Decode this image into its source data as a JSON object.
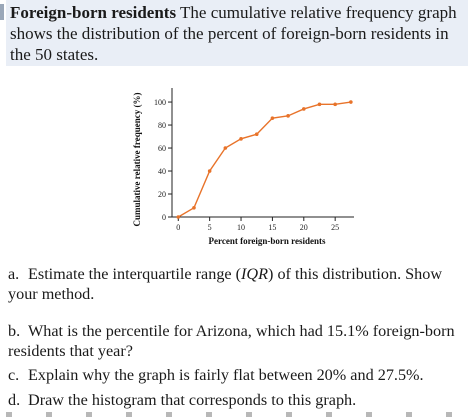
{
  "intro": {
    "lead": "Foreign-born residents",
    "text": " The cumulative relative frequency graph shows the distribution of the percent of foreign-born residents in the 50 states."
  },
  "chart_data": {
    "type": "line",
    "title": "",
    "xlabel": "Percent foreign-born residents",
    "ylabel": "Cumulative relative frequency (%)",
    "xlim": [
      -1,
      28
    ],
    "ylim": [
      0,
      107
    ],
    "xticks": [
      0,
      5,
      10,
      15,
      20,
      25
    ],
    "yticks": [
      0,
      20,
      40,
      60,
      80,
      100
    ],
    "grid": false,
    "series": [
      {
        "color": "#e8732a",
        "x": [
          0,
          2.5,
          5,
          7.5,
          10,
          12.5,
          15,
          17.5,
          20,
          22.5,
          25,
          27.5
        ],
        "y": [
          0,
          8,
          40,
          60,
          68,
          72,
          86,
          88,
          94,
          98,
          98,
          100
        ]
      }
    ]
  },
  "questions": [
    {
      "letter": "a.",
      "text_before": "Estimate the interquartile range (",
      "emph": "IQR",
      "text_after": ") of this distribution. Show your method."
    },
    {
      "letter": "b.",
      "text": "What is the percentile for Arizona, which had 15.1% foreign-born residents that year?"
    },
    {
      "letter": "c.",
      "text": "Explain why the graph is fairly flat between 20% and 27.5%."
    },
    {
      "letter": "d.",
      "text": "Draw the histogram that corresponds to this graph."
    }
  ]
}
